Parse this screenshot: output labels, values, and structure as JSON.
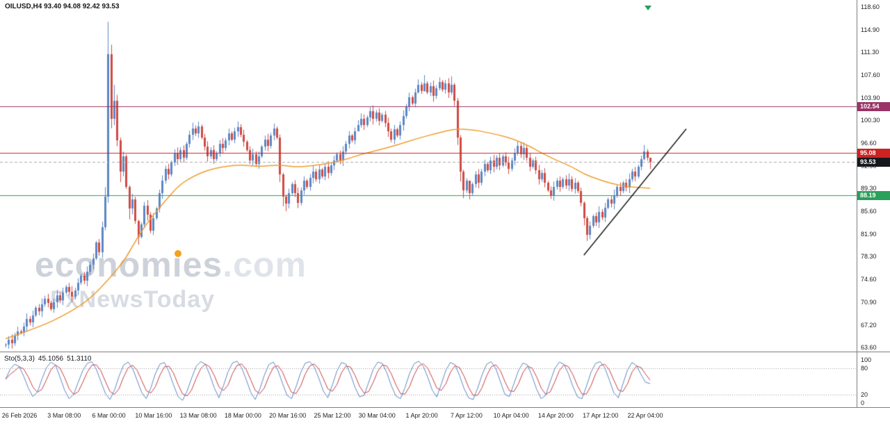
{
  "header": {
    "title": "OILUSD,H4 93.40 94.08 92.42 93.53"
  },
  "watermark": {
    "line1_pre": "econom",
    "line1_i": "ı",
    "line1_post": "es",
    "line1_suffix": ".com",
    "line2": "FxNewsToday"
  },
  "colors": {
    "up": "#5b86c4",
    "down": "#cf4a42",
    "ma": "#ef9d2e",
    "trend": "#111111",
    "stoch_k": "#5b86c4",
    "stoch_d": "#cc3b3b",
    "level_dots": "#999999",
    "axis_text": "#1a1e22",
    "separator": "#7f7f7f",
    "watermark_gray": "#cdd2da",
    "watermark_accent": "#f4a11d",
    "background": "#ffffff"
  },
  "chart_data": {
    "type": "candlestick",
    "symbol": "OILUSD",
    "timeframe": "H4",
    "ohlc_display": {
      "open": "93.40",
      "high": "94.08",
      "low": "92.42",
      "close": "93.53"
    },
    "y_range": [
      63.6,
      118.6
    ],
    "y_ticks": [
      "118.60",
      "114.90",
      "111.30",
      "107.60",
      "103.90",
      "100.30",
      "96.60",
      "92.90",
      "89.30",
      "85.60",
      "81.90",
      "78.30",
      "74.60",
      "70.90",
      "67.20",
      "63.60"
    ],
    "x_labels": [
      "26 Feb 2026",
      "3 Mar 08:00",
      "6 Mar 00:00",
      "10 Mar 16:00",
      "13 Mar 08:00",
      "18 Mar 00:00",
      "20 Mar 16:00",
      "25 Mar 12:00",
      "30 Mar 04:00",
      "1 Apr 20:00",
      "7 Apr 12:00",
      "10 Apr 04:00",
      "14 Apr 20:00",
      "17 Apr 12:00",
      "22 Apr 04:00"
    ],
    "first_open": 63.9,
    "closes": [
      64.0,
      64.8,
      64.3,
      65.5,
      66.2,
      66.0,
      67.0,
      68.2,
      67.6,
      68.8,
      70.0,
      69.4,
      70.6,
      71.5,
      70.8,
      69.8,
      70.9,
      72.0,
      71.2,
      72.5,
      73.4,
      72.6,
      71.8,
      72.8,
      74.0,
      75.2,
      74.4,
      75.8,
      77.0,
      78.0,
      80.5,
      79.0,
      83.0,
      88.0,
      111.0,
      100.5,
      103.5,
      97.0,
      92.0,
      94.5,
      89.5,
      86.0,
      87.5,
      84.0,
      81.5,
      83.5,
      86.5,
      85.0,
      82.5,
      84.5,
      86.0,
      88.5,
      90.5,
      92.5,
      91.5,
      93.5,
      95.0,
      94.0,
      95.5,
      94.2,
      96.5,
      98.0,
      99.0,
      98.2,
      99.3,
      97.5,
      96.0,
      94.5,
      95.5,
      94.0,
      95.0,
      96.5,
      95.8,
      97.0,
      98.2,
      97.2,
      98.5,
      99.2,
      98.0,
      96.8,
      95.5,
      93.8,
      94.8,
      93.2,
      94.5,
      96.0,
      97.2,
      96.2,
      97.8,
      99.0,
      97.5,
      91.5,
      88.0,
      86.8,
      88.5,
      90.0,
      88.5,
      87.0,
      89.0,
      90.5,
      89.5,
      91.0,
      92.0,
      90.8,
      92.3,
      91.2,
      92.8,
      91.8,
      93.0,
      93.8,
      94.8,
      93.8,
      95.2,
      96.5,
      97.8,
      97.0,
      98.5,
      99.5,
      100.5,
      99.5,
      100.8,
      101.8,
      100.5,
      101.5,
      100.2,
      101.2,
      99.8,
      98.5,
      97.2,
      98.8,
      97.8,
      99.5,
      101.0,
      102.5,
      104.0,
      103.0,
      104.8,
      106.0,
      105.0,
      106.3,
      104.8,
      105.8,
      104.2,
      105.5,
      106.5,
      105.2,
      106.2,
      104.8,
      106.0,
      103.5,
      97.5,
      92.0,
      89.0,
      90.5,
      88.5,
      90.0,
      91.5,
      90.2,
      92.0,
      93.2,
      92.2,
      93.8,
      92.8,
      94.2,
      93.0,
      94.5,
      93.5,
      92.5,
      93.8,
      95.0,
      96.2,
      94.8,
      95.8,
      94.2,
      92.8,
      93.8,
      92.2,
      90.8,
      91.8,
      90.2,
      89.0,
      88.2,
      89.5,
      90.5,
      89.5,
      90.8,
      89.8,
      90.8,
      89.2,
      90.2,
      88.8,
      87.0,
      84.5,
      81.8,
      83.2,
      84.8,
      83.8,
      85.5,
      84.6,
      86.2,
      87.5,
      86.8,
      88.2,
      89.5,
      88.8,
      90.2,
      89.4,
      90.8,
      92.0,
      91.2,
      92.8,
      94.0,
      95.2,
      94.2,
      93.53
    ],
    "wick_overrides": {
      "33": [
        89.5,
        82.5
      ],
      "34": [
        116.2,
        87.0
      ],
      "35": [
        112.5,
        99.0
      ],
      "36": [
        106.0,
        99.5
      ],
      "38": [
        97.5,
        90.3
      ],
      "41": [
        89.8,
        84.3
      ],
      "44": [
        84.2,
        80.2
      ],
      "91": [
        98.0,
        90.3
      ],
      "92": [
        91.8,
        86.4
      ],
      "93": [
        88.3,
        85.6
      ],
      "117": [
        100.3,
        98.6
      ],
      "118": [
        101.4,
        99.1
      ],
      "121": [
        102.4,
        100.1
      ],
      "137": [
        106.9,
        104.6
      ],
      "139": [
        107.6,
        104.9
      ],
      "144": [
        107.2,
        105.1
      ],
      "148": [
        107.4,
        104.4
      ],
      "149": [
        106.3,
        102.6
      ],
      "150": [
        103.9,
        96.3
      ],
      "151": [
        97.9,
        90.4
      ],
      "152": [
        92.3,
        87.7
      ],
      "154": [
        89.6,
        87.5
      ],
      "170": [
        96.9,
        94.6
      ],
      "192": [
        87.2,
        83.3
      ],
      "193": [
        84.8,
        80.8
      ],
      "212": [
        96.3,
        93.8
      ],
      "214": [
        94.1,
        92.4
      ]
    },
    "ma": {
      "name": "moving-average",
      "points": [
        [
          0,
          65.0
        ],
        [
          12,
          67.0
        ],
        [
          21,
          69.2
        ],
        [
          28,
          71.4
        ],
        [
          35,
          75.0
        ],
        [
          40,
          78.0
        ],
        [
          44,
          81.6
        ],
        [
          49,
          85.0
        ],
        [
          54,
          87.8
        ],
        [
          58,
          90.0
        ],
        [
          63,
          91.4
        ],
        [
          67,
          92.2
        ],
        [
          72,
          92.8
        ],
        [
          78,
          93.1
        ],
        [
          84,
          92.8
        ],
        [
          91,
          93.1
        ],
        [
          97,
          92.7
        ],
        [
          104,
          93.1
        ],
        [
          109,
          93.5
        ],
        [
          114,
          94.1
        ],
        [
          118,
          94.8
        ],
        [
          124,
          95.5
        ],
        [
          130,
          96.3
        ],
        [
          137,
          97.4
        ],
        [
          144,
          98.3
        ],
        [
          149,
          98.9
        ],
        [
          155,
          98.8
        ],
        [
          160,
          98.3
        ],
        [
          164,
          97.9
        ],
        [
          169,
          97.2
        ],
        [
          174,
          96.1
        ],
        [
          178,
          95.0
        ],
        [
          183,
          93.8
        ],
        [
          188,
          92.8
        ],
        [
          192,
          91.6
        ],
        [
          197,
          90.7
        ],
        [
          201,
          90.1
        ],
        [
          206,
          89.6
        ],
        [
          211,
          89.4
        ],
        [
          214,
          89.3
        ]
      ]
    },
    "trendline": {
      "x1_index": 192,
      "price1": 78.5,
      "x2_index": 226,
      "price2": 98.9
    },
    "hlines": [
      {
        "price": 102.54,
        "label": "102.54",
        "color": "#993366",
        "style": "solid"
      },
      {
        "price": 95.08,
        "label": "95.08",
        "color": "#cc2222",
        "style": "solid"
      },
      {
        "price": 93.53,
        "label": "93.53",
        "color": "#15191d",
        "style": "dashed",
        "line_color": "#a8a8a8"
      },
      {
        "price": 88.19,
        "label": "88.19",
        "color": "#2aa05a",
        "style": "solid"
      }
    ],
    "stochastic": {
      "label": "Sto(5,3,3)",
      "k_display": "45.1056",
      "d_display": "51.3110",
      "levels": [
        20,
        80
      ],
      "y_ticks": [
        "100",
        "80",
        "20",
        "0"
      ],
      "k": [
        55,
        78,
        90,
        85,
        62,
        35,
        15,
        25,
        55,
        82,
        95,
        88,
        60,
        30,
        10,
        20,
        48,
        75,
        92,
        96,
        78,
        50,
        22,
        8,
        30,
        62,
        88,
        95,
        80,
        52,
        24,
        10,
        35,
        68,
        90,
        94,
        72,
        42,
        15,
        6,
        28,
        58,
        85,
        96,
        90,
        65,
        35,
        12,
        40,
        72,
        93,
        97,
        82,
        55,
        25,
        8,
        32,
        64,
        89,
        95,
        76,
        46,
        18,
        10,
        38,
        70,
        92,
        96,
        84,
        58,
        28,
        12,
        42,
        74,
        94,
        90,
        66,
        36,
        14,
        18,
        48,
        78,
        95,
        92,
        70,
        40,
        16,
        10,
        36,
        68,
        91,
        97,
        86,
        60,
        30,
        14,
        44,
        76,
        94,
        89,
        64,
        34,
        12,
        8,
        34,
        66,
        90,
        96,
        80,
        50,
        20,
        15,
        45,
        75,
        93,
        88,
        62,
        32,
        10,
        18,
        50,
        80,
        95,
        90,
        68,
        38,
        14,
        10,
        40,
        72,
        92,
        96,
        82,
        54,
        24,
        12,
        44,
        76,
        94,
        87,
        66,
        48,
        45
      ]
    }
  }
}
